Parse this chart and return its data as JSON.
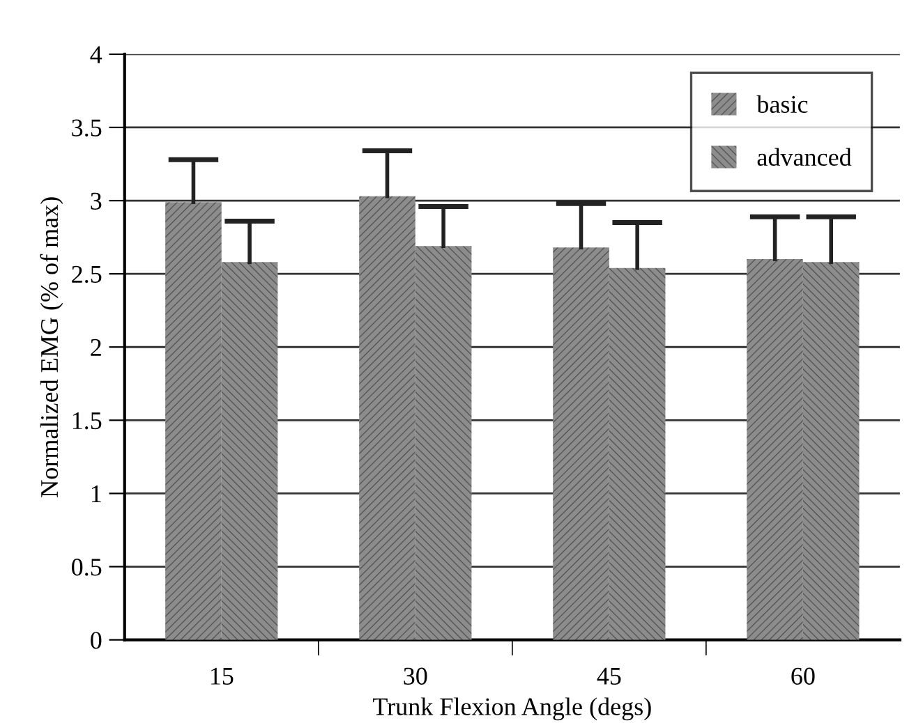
{
  "chart_data": {
    "type": "bar",
    "xlabel": "Trunk Flexion Angle (degs)",
    "ylabel": "Normalized EMG (% of max)",
    "categories": [
      "15",
      "30",
      "45",
      "60"
    ],
    "series": [
      {
        "name": "basic",
        "color": "#8c8c8c",
        "values": [
          2.99,
          3.03,
          2.68,
          2.6
        ],
        "errors": [
          [
            2.99,
            3.28
          ],
          [
            3.03,
            3.34
          ],
          [
            2.68,
            2.98
          ],
          [
            2.6,
            2.89
          ]
        ]
      },
      {
        "name": "advanced",
        "color": "#8c8c8c",
        "values": [
          2.58,
          2.69,
          2.54,
          2.58
        ],
        "errors": [
          [
            2.58,
            2.86
          ],
          [
            2.69,
            2.96
          ],
          [
            2.54,
            2.85
          ],
          [
            2.58,
            2.89
          ]
        ]
      }
    ],
    "ylim": [
      0,
      4
    ],
    "yticks": [
      0,
      0.5,
      1,
      1.5,
      2,
      2.5,
      3,
      3.5,
      4
    ],
    "grid": "y",
    "legend": "top right"
  }
}
